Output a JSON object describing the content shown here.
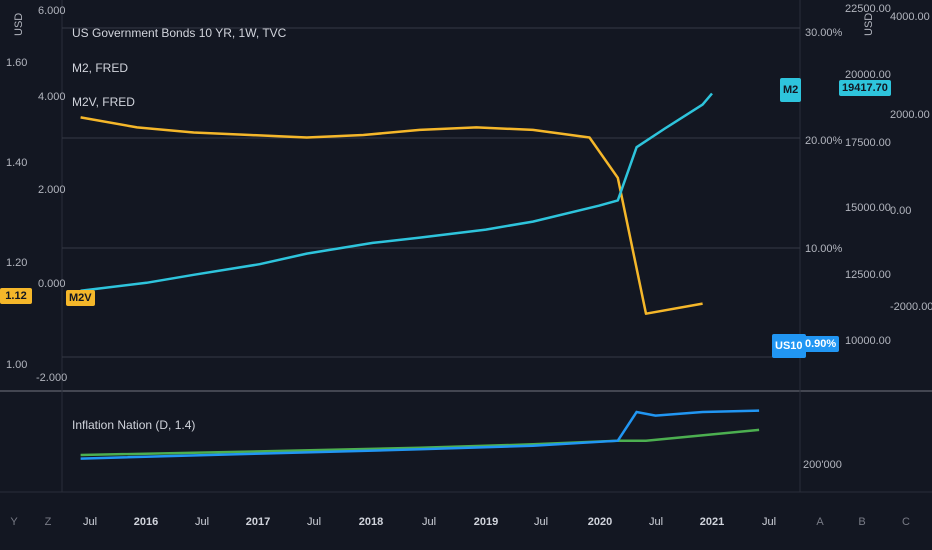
{
  "legend": {
    "main": "US Government Bonds 10 YR, 1W, TVC",
    "m2": "M2, FRED",
    "m2v": "M2V, FRED",
    "pane2": "Inflation Nation (D, 1.4)"
  },
  "axes": {
    "usd_left": "USD",
    "usd_right": "USD",
    "left_outer_ticks": [
      "1.60",
      "1.40",
      "1.20",
      "1.00"
    ],
    "left_top_tick": "6.000",
    "left_inner_ticks": [
      "4.000",
      "2.000",
      "0.000",
      "-2.000"
    ],
    "pct_ticks": [
      "30.00%",
      "20.00%",
      "10.00%"
    ],
    "m2_ticks": [
      "22500.00",
      "20000.00",
      "17500.00",
      "15000.00",
      "12500.00",
      "10000.00"
    ],
    "far_right_ticks": [
      "4000.00",
      "2000.00",
      "0.00",
      "-2000.00"
    ],
    "pane2_tick": "200'000",
    "x_ticks": [
      "Jul",
      "2016",
      "Jul",
      "2017",
      "Jul",
      "2018",
      "Jul",
      "2019",
      "Jul",
      "2020",
      "Jul",
      "2021",
      "Jul"
    ],
    "bottom_buttons": [
      "Y",
      "Z",
      "A",
      "B",
      "C"
    ]
  },
  "labels": {
    "m2v_left_value": "1.12",
    "m2v_tag": "M2V",
    "m2_tag": "M2",
    "m2_value": "19417.70",
    "us10_tag": "US10",
    "us10_value": "0.90%"
  },
  "colors": {
    "m2v": "#f5b72a",
    "m2": "#2ec4dc",
    "us10": "#2196f3",
    "pane2_green": "#4caf50",
    "pane2_blue": "#2196f3"
  },
  "chart_data": [
    {
      "type": "line",
      "title": "M2V, FRED",
      "x": [
        "2015-06",
        "2015-12",
        "2016-06",
        "2016-12",
        "2017-06",
        "2017-12",
        "2018-06",
        "2018-12",
        "2019-06",
        "2019-12",
        "2020-03",
        "2020-06",
        "2020-12"
      ],
      "values": [
        1.49,
        1.47,
        1.46,
        1.455,
        1.45,
        1.455,
        1.465,
        1.47,
        1.465,
        1.45,
        1.37,
        1.1,
        1.12
      ],
      "ylim": [
        0.95,
        1.65
      ]
    },
    {
      "type": "line",
      "title": "M2, FRED",
      "x": [
        "2015-06",
        "2016-01",
        "2016-06",
        "2017-01",
        "2017-06",
        "2018-01",
        "2018-06",
        "2019-01",
        "2019-06",
        "2020-01",
        "2020-03",
        "2020-05",
        "2020-08",
        "2020-12",
        "2021-01"
      ],
      "values": [
        12000,
        12300,
        12600,
        13000,
        13400,
        13800,
        14000,
        14300,
        14600,
        15200,
        15400,
        17400,
        18100,
        19000,
        19417.7
      ],
      "ylim": [
        9500,
        22500
      ]
    },
    {
      "type": "line",
      "title": "Inflation Nation (D, 1.4)",
      "series": [
        {
          "x": [
            "2015-06",
            "2017-01",
            "2018-06",
            "2019-06",
            "2020-03",
            "2020-06",
            "2021-06"
          ],
          "values": [
            1.0,
            1.05,
            1.1,
            1.15,
            1.2,
            1.2,
            1.35
          ]
        },
        {
          "x": [
            "2015-06",
            "2017-01",
            "2018-06",
            "2019-06",
            "2020-03",
            "2020-05",
            "2020-07",
            "2020-12",
            "2021-06"
          ],
          "values": [
            0.95,
            1.02,
            1.08,
            1.13,
            1.2,
            1.6,
            1.55,
            1.6,
            1.62
          ]
        }
      ]
    }
  ]
}
